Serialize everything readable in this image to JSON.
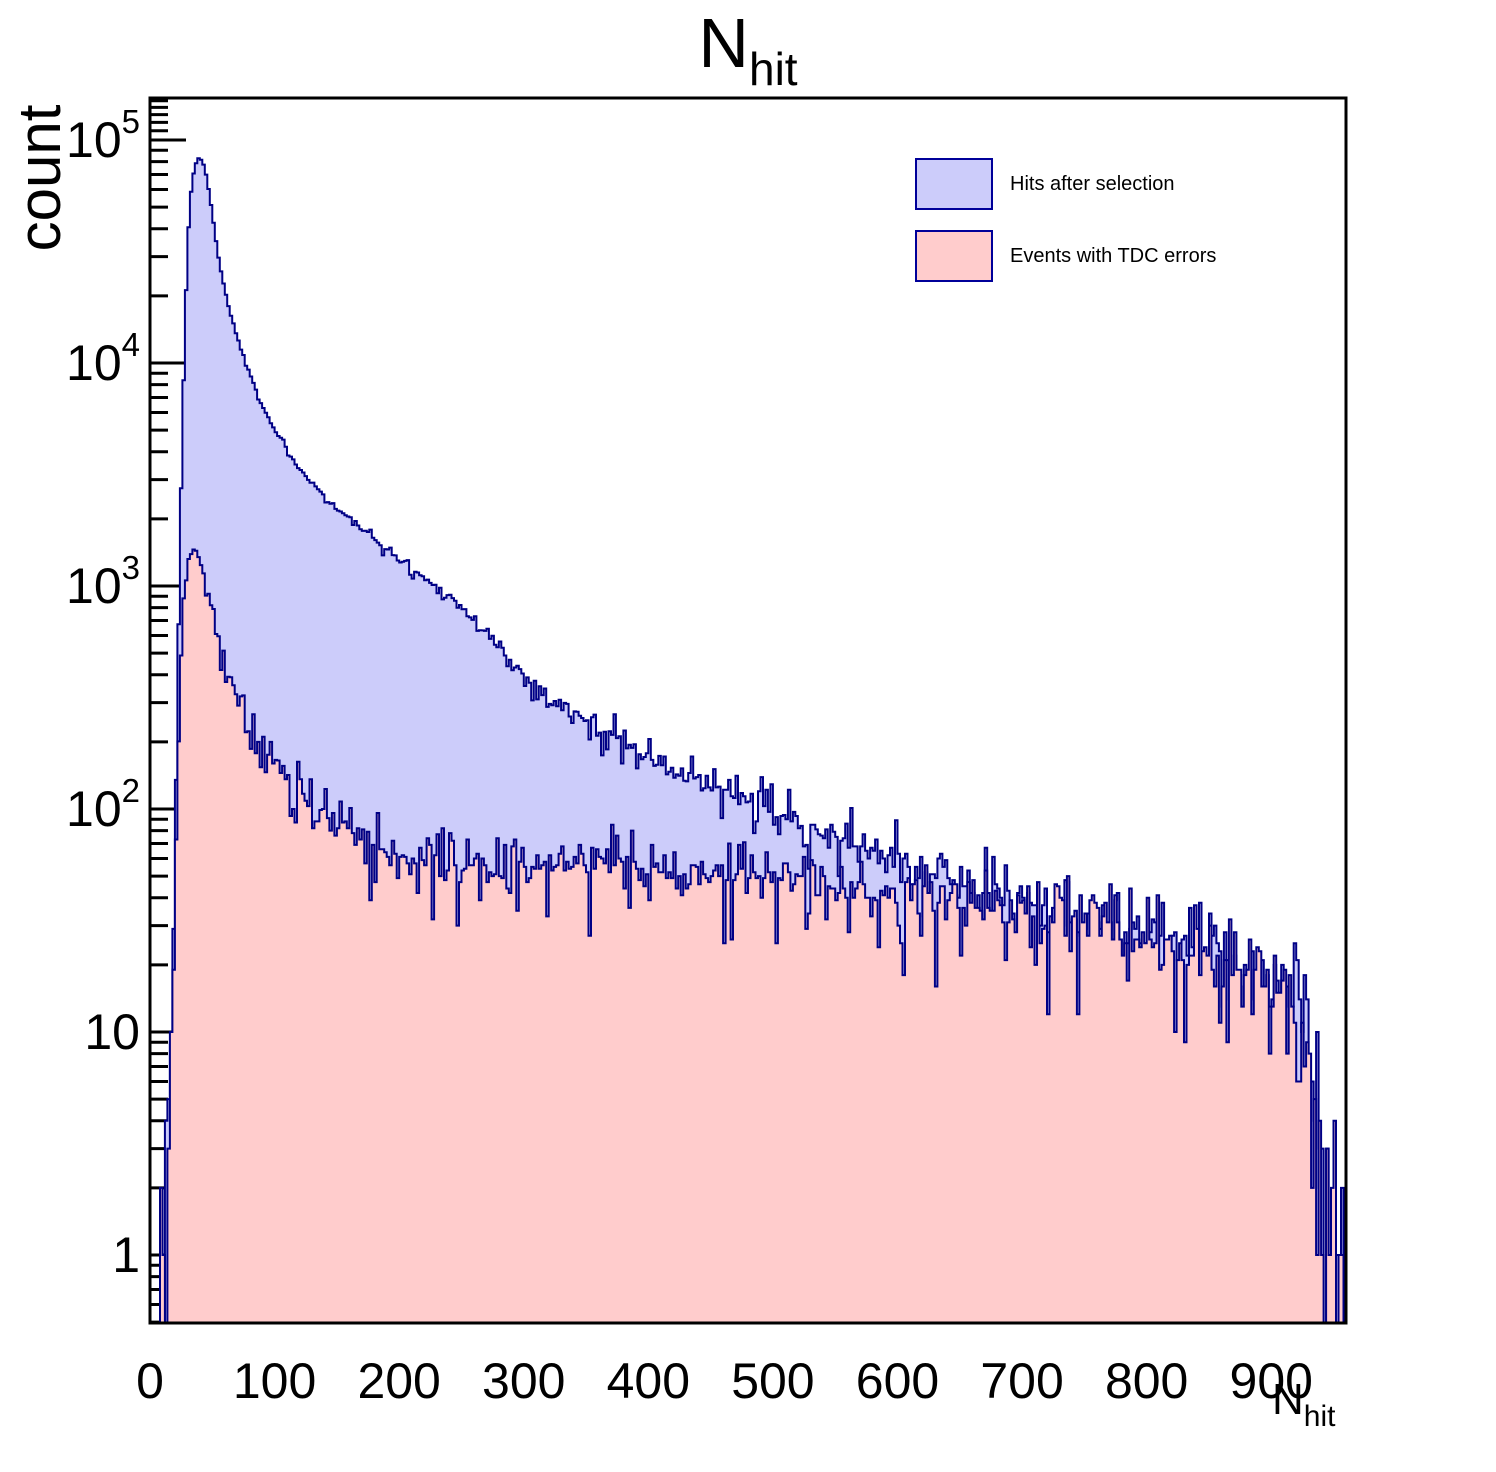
{
  "title": {
    "base": "N",
    "sub": "hit"
  },
  "axes": {
    "x": {
      "title_base": "N",
      "title_sub": "hit",
      "min": 0,
      "max": 960,
      "tick_labels": [
        "0",
        "100",
        "200",
        "300",
        "400",
        "500",
        "600",
        "700",
        "800",
        "900"
      ],
      "tick_values": [
        0,
        100,
        200,
        300,
        400,
        500,
        600,
        700,
        800,
        900
      ],
      "minor_step": 20
    },
    "y": {
      "title": "count",
      "scale": "log",
      "min": 0.5,
      "max": 155000,
      "decade_labels": [
        {
          "text": "1",
          "exp": ""
        },
        {
          "text": "10",
          "exp": ""
        },
        {
          "text": "10",
          "exp": "2"
        },
        {
          "text": "10",
          "exp": "3"
        },
        {
          "text": "10",
          "exp": "4"
        },
        {
          "text": "10",
          "exp": "5"
        }
      ],
      "top_partial_minors": [
        110000,
        120000,
        130000,
        140000,
        150000
      ]
    }
  },
  "legend": {
    "items": [
      {
        "label": "Hits after selection",
        "fill": "#ccccfa",
        "border": "#000099"
      },
      {
        "label": "Events with TDC errors",
        "fill": "#ffcccc",
        "border": "#000099"
      }
    ]
  },
  "colors": {
    "frame": "#000000",
    "hist_line": "#000085",
    "blue_fill": "#ccccfa",
    "pink_fill": "#ffcccc"
  },
  "chart_data": {
    "type": "bar",
    "subtype": "step-filled-histogram-log-y",
    "title": "N_hit",
    "xlabel": "N_hit",
    "ylabel": "count",
    "xlim": [
      0,
      960
    ],
    "ylim": [
      0.5,
      155000
    ],
    "bin_width": 2,
    "n_bins": 480,
    "legend_position": "top-right",
    "grid": false,
    "series": [
      {
        "name": "Hits after selection",
        "seed": 1337,
        "envelope": [
          [
            8,
            0.3
          ],
          [
            10,
            1
          ],
          [
            12,
            2
          ],
          [
            14,
            3
          ],
          [
            16,
            6
          ],
          [
            18,
            15
          ],
          [
            20,
            60
          ],
          [
            22,
            300
          ],
          [
            24,
            1500
          ],
          [
            26,
            5000
          ],
          [
            28,
            14000
          ],
          [
            30,
            32000
          ],
          [
            32,
            52000
          ],
          [
            34,
            66000
          ],
          [
            36,
            76000
          ],
          [
            38,
            82000
          ],
          [
            40,
            83000
          ],
          [
            42,
            80000
          ],
          [
            44,
            74000
          ],
          [
            46,
            66000
          ],
          [
            48,
            56000
          ],
          [
            50,
            47000
          ],
          [
            54,
            32000
          ],
          [
            58,
            24000
          ],
          [
            62,
            19000
          ],
          [
            67,
            15000
          ],
          [
            72,
            12000
          ],
          [
            80,
            9000
          ],
          [
            90,
            6500
          ],
          [
            100,
            5000
          ],
          [
            110,
            4100
          ],
          [
            120,
            3400
          ],
          [
            134,
            2750
          ],
          [
            147,
            2300
          ],
          [
            160,
            2000
          ],
          [
            175,
            1700
          ],
          [
            190,
            1460
          ],
          [
            205,
            1260
          ],
          [
            220,
            1080
          ],
          [
            241,
            900
          ],
          [
            260,
            700
          ],
          [
            280,
            530
          ],
          [
            300,
            400
          ],
          [
            321,
            310
          ],
          [
            340,
            265
          ],
          [
            360,
            228
          ],
          [
            377,
            210
          ],
          [
            400,
            172
          ],
          [
            425,
            140
          ],
          [
            450,
            125
          ],
          [
            473,
            113
          ],
          [
            500,
            97
          ],
          [
            520,
            88
          ],
          [
            540,
            80
          ],
          [
            562,
            70
          ],
          [
            580,
            65
          ],
          [
            600,
            59
          ],
          [
            620,
            54
          ],
          [
            640,
            49
          ],
          [
            660,
            45
          ],
          [
            680,
            42
          ],
          [
            700,
            39
          ],
          [
            720,
            36
          ],
          [
            740,
            33
          ],
          [
            762,
            30
          ],
          [
            780,
            28
          ],
          [
            800,
            26
          ],
          [
            820,
            24
          ],
          [
            840,
            22
          ],
          [
            860,
            20
          ],
          [
            880,
            19
          ],
          [
            900,
            17
          ],
          [
            912,
            15
          ],
          [
            922,
            13
          ],
          [
            928,
            9
          ],
          [
            934,
            5
          ],
          [
            940,
            3
          ],
          [
            946,
            2
          ],
          [
            952,
            1
          ],
          [
            958,
            0.4
          ]
        ]
      },
      {
        "name": "Events with TDC errors",
        "seed": 7331,
        "envelope": [
          [
            8,
            0.2
          ],
          [
            10,
            0.7
          ],
          [
            12,
            1.5
          ],
          [
            14,
            3
          ],
          [
            16,
            6
          ],
          [
            18,
            12
          ],
          [
            20,
            35
          ],
          [
            22,
            110
          ],
          [
            24,
            350
          ],
          [
            26,
            700
          ],
          [
            28,
            1000
          ],
          [
            30,
            1250
          ],
          [
            32,
            1380
          ],
          [
            34,
            1450
          ],
          [
            36,
            1440
          ],
          [
            38,
            1380
          ],
          [
            40,
            1290
          ],
          [
            42,
            1180
          ],
          [
            44,
            1060
          ],
          [
            46,
            950
          ],
          [
            48,
            840
          ],
          [
            50,
            740
          ],
          [
            54,
            590
          ],
          [
            58,
            480
          ],
          [
            62,
            405
          ],
          [
            67,
            340
          ],
          [
            72,
            290
          ],
          [
            80,
            230
          ],
          [
            90,
            185
          ],
          [
            100,
            170
          ],
          [
            110,
            140
          ],
          [
            120,
            120
          ],
          [
            134,
            100
          ],
          [
            147,
            88
          ],
          [
            160,
            79
          ],
          [
            175,
            72
          ],
          [
            190,
            66
          ],
          [
            205,
            62
          ],
          [
            220,
            59
          ],
          [
            240,
            57
          ],
          [
            260,
            55
          ],
          [
            280,
            54
          ],
          [
            300,
            54
          ],
          [
            320,
            55
          ],
          [
            340,
            55
          ],
          [
            360,
            56
          ],
          [
            380,
            56
          ],
          [
            400,
            55
          ],
          [
            420,
            54
          ],
          [
            440,
            53
          ],
          [
            460,
            52
          ],
          [
            480,
            51
          ],
          [
            500,
            50
          ],
          [
            520,
            48
          ],
          [
            540,
            46
          ],
          [
            562,
            44
          ],
          [
            580,
            43
          ],
          [
            600,
            41
          ],
          [
            620,
            40
          ],
          [
            640,
            38
          ],
          [
            660,
            37
          ],
          [
            680,
            36
          ],
          [
            700,
            34
          ],
          [
            720,
            32
          ],
          [
            740,
            31
          ],
          [
            762,
            29
          ],
          [
            780,
            27
          ],
          [
            800,
            25
          ],
          [
            820,
            23
          ],
          [
            840,
            21
          ],
          [
            860,
            20
          ],
          [
            880,
            18
          ],
          [
            900,
            16
          ],
          [
            912,
            14
          ],
          [
            922,
            12
          ],
          [
            928,
            8
          ],
          [
            934,
            5
          ],
          [
            940,
            3
          ],
          [
            946,
            2
          ],
          [
            952,
            1
          ],
          [
            958,
            0.4
          ]
        ]
      }
    ]
  }
}
